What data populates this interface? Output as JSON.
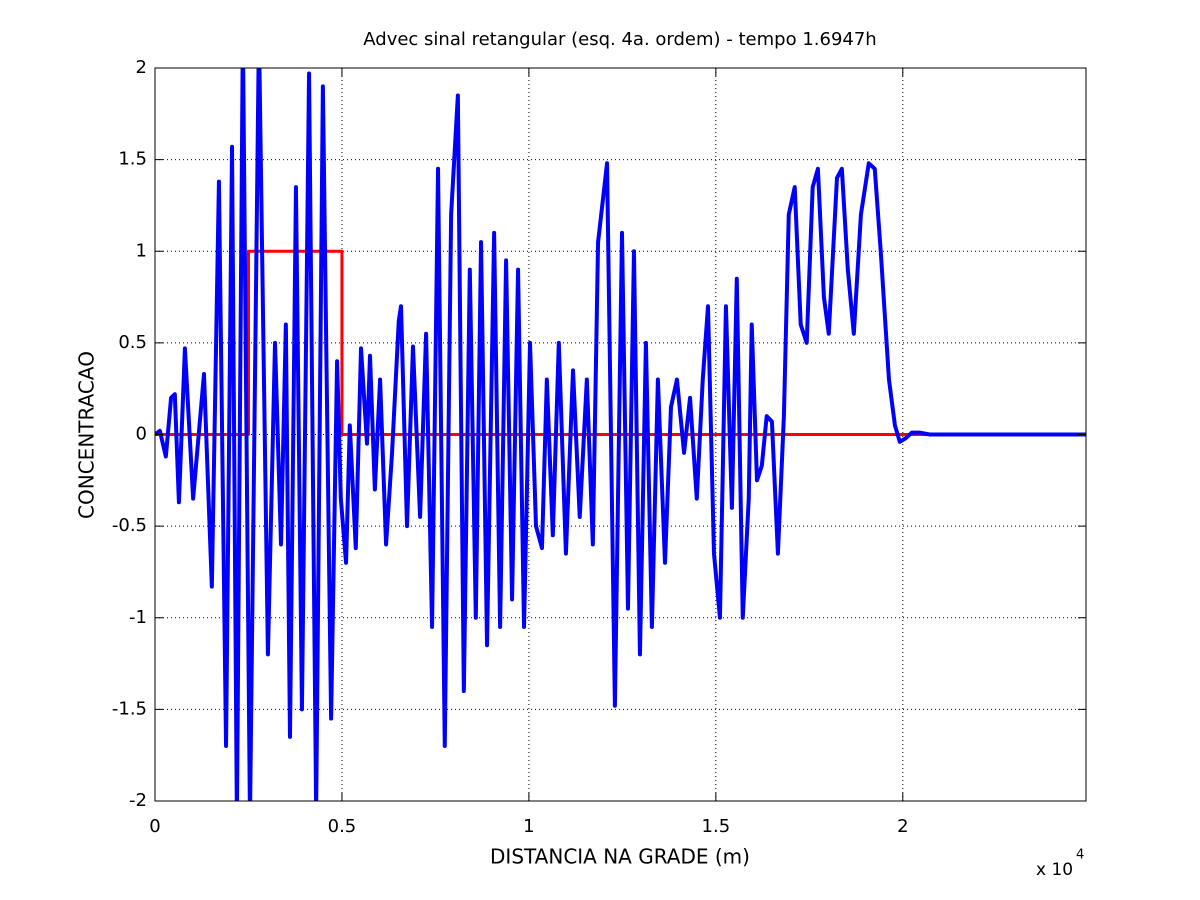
{
  "chart_data": {
    "type": "line",
    "title": "Advec sinal retangular (esq. 4a. ordem) - tempo 1.6947h",
    "xlabel": "DISTANCIA NA GRADE (m)",
    "ylabel": "CONCENTRACAO",
    "x_multiplier": "x 10",
    "x_multiplier_exponent": "4",
    "xlim": [
      0,
      24900
    ],
    "ylim": [
      -2,
      2
    ],
    "xticks": [
      {
        "value": 0,
        "label": "0"
      },
      {
        "value": 5000,
        "label": "0.5"
      },
      {
        "value": 10000,
        "label": "1"
      },
      {
        "value": 15000,
        "label": "1.5"
      },
      {
        "value": 20000,
        "label": "2"
      }
    ],
    "yticks": [
      -2,
      -1.5,
      -1,
      -0.5,
      0,
      0.5,
      1,
      1.5,
      2
    ],
    "grid": true,
    "series": [
      {
        "color": "#ff0000",
        "x": [
          0,
          2500,
          2500,
          5000,
          5000,
          24900
        ],
        "values": [
          0,
          0,
          1,
          1,
          0,
          0
        ]
      },
      {
        "color": "#0000ff",
        "x": [
          0,
          130,
          290,
          430,
          530,
          640,
          800,
          1020,
          1310,
          1520,
          1710,
          1900,
          2060,
          2190,
          2350,
          2540,
          2780,
          3020,
          3210,
          3370,
          3500,
          3610,
          3770,
          3930,
          4120,
          4310,
          4490,
          4710,
          4870,
          4970,
          5110,
          5210,
          5370,
          5510,
          5670,
          5750,
          5880,
          6020,
          6180,
          6340,
          6520,
          6580,
          6740,
          6900,
          7090,
          7250,
          7410,
          7570,
          7750,
          7920,
          8100,
          8260,
          8420,
          8580,
          8720,
          8880,
          9070,
          9230,
          9390,
          9550,
          9710,
          9870,
          10030,
          10190,
          10350,
          10480,
          10640,
          10800,
          10990,
          11180,
          11360,
          11550,
          11710,
          11850,
          12090,
          12300,
          12490,
          12650,
          12810,
          12970,
          13130,
          13290,
          13450,
          13640,
          13800,
          13960,
          14150,
          14310,
          14490,
          14650,
          14790,
          14950,
          15110,
          15270,
          15430,
          15560,
          15720,
          15880,
          15960,
          16100,
          16230,
          16360,
          16500,
          16660,
          16820,
          16950,
          17110,
          17270,
          17430,
          17590,
          17730,
          17890,
          18020,
          18240,
          18370,
          18530,
          18690,
          18880,
          19090,
          19250,
          19410,
          19630,
          19790,
          19920,
          20080,
          20240,
          20460,
          20720,
          24900
        ],
        "values": [
          0,
          0.02,
          -0.12,
          0.2,
          0.22,
          -0.37,
          0.47,
          -0.35,
          0.33,
          -0.83,
          1.38,
          -1.7,
          1.57,
          -2.1,
          2.2,
          -2.1,
          2.2,
          -1.2,
          0.5,
          -0.6,
          0.6,
          -1.65,
          1.35,
          -1.5,
          1.97,
          -2.05,
          1.9,
          -1.55,
          0.4,
          -0.35,
          -0.7,
          0.05,
          -0.62,
          0.47,
          -0.05,
          0.43,
          -0.3,
          0.3,
          -0.6,
          -0.1,
          0.62,
          0.7,
          -0.5,
          0.48,
          -0.45,
          0.55,
          -1.05,
          1.45,
          -1.7,
          1.2,
          1.85,
          -1.4,
          0.9,
          -1.0,
          1.05,
          -1.15,
          1.1,
          -1.05,
          0.95,
          -0.9,
          0.9,
          -1.05,
          0.5,
          -0.5,
          -0.62,
          0.3,
          -0.55,
          0.5,
          -0.65,
          0.35,
          -0.45,
          0.3,
          -0.6,
          1.05,
          1.48,
          -1.48,
          1.1,
          -0.95,
          1.0,
          -1.2,
          0.5,
          -1.05,
          0.3,
          -0.7,
          0.15,
          0.3,
          -0.1,
          0.2,
          -0.35,
          0.3,
          0.7,
          -0.65,
          -1.0,
          0.7,
          -0.4,
          0.85,
          -1.0,
          -0.35,
          0.6,
          -0.25,
          -0.17,
          0.1,
          0.07,
          -0.65,
          0.1,
          1.2,
          1.35,
          0.6,
          0.5,
          1.35,
          1.45,
          0.75,
          0.55,
          1.4,
          1.45,
          0.9,
          0.55,
          1.2,
          1.48,
          1.45,
          1.0,
          0.3,
          0.05,
          -0.04,
          -0.02,
          0.01,
          0.01,
          0,
          0
        ]
      }
    ]
  }
}
